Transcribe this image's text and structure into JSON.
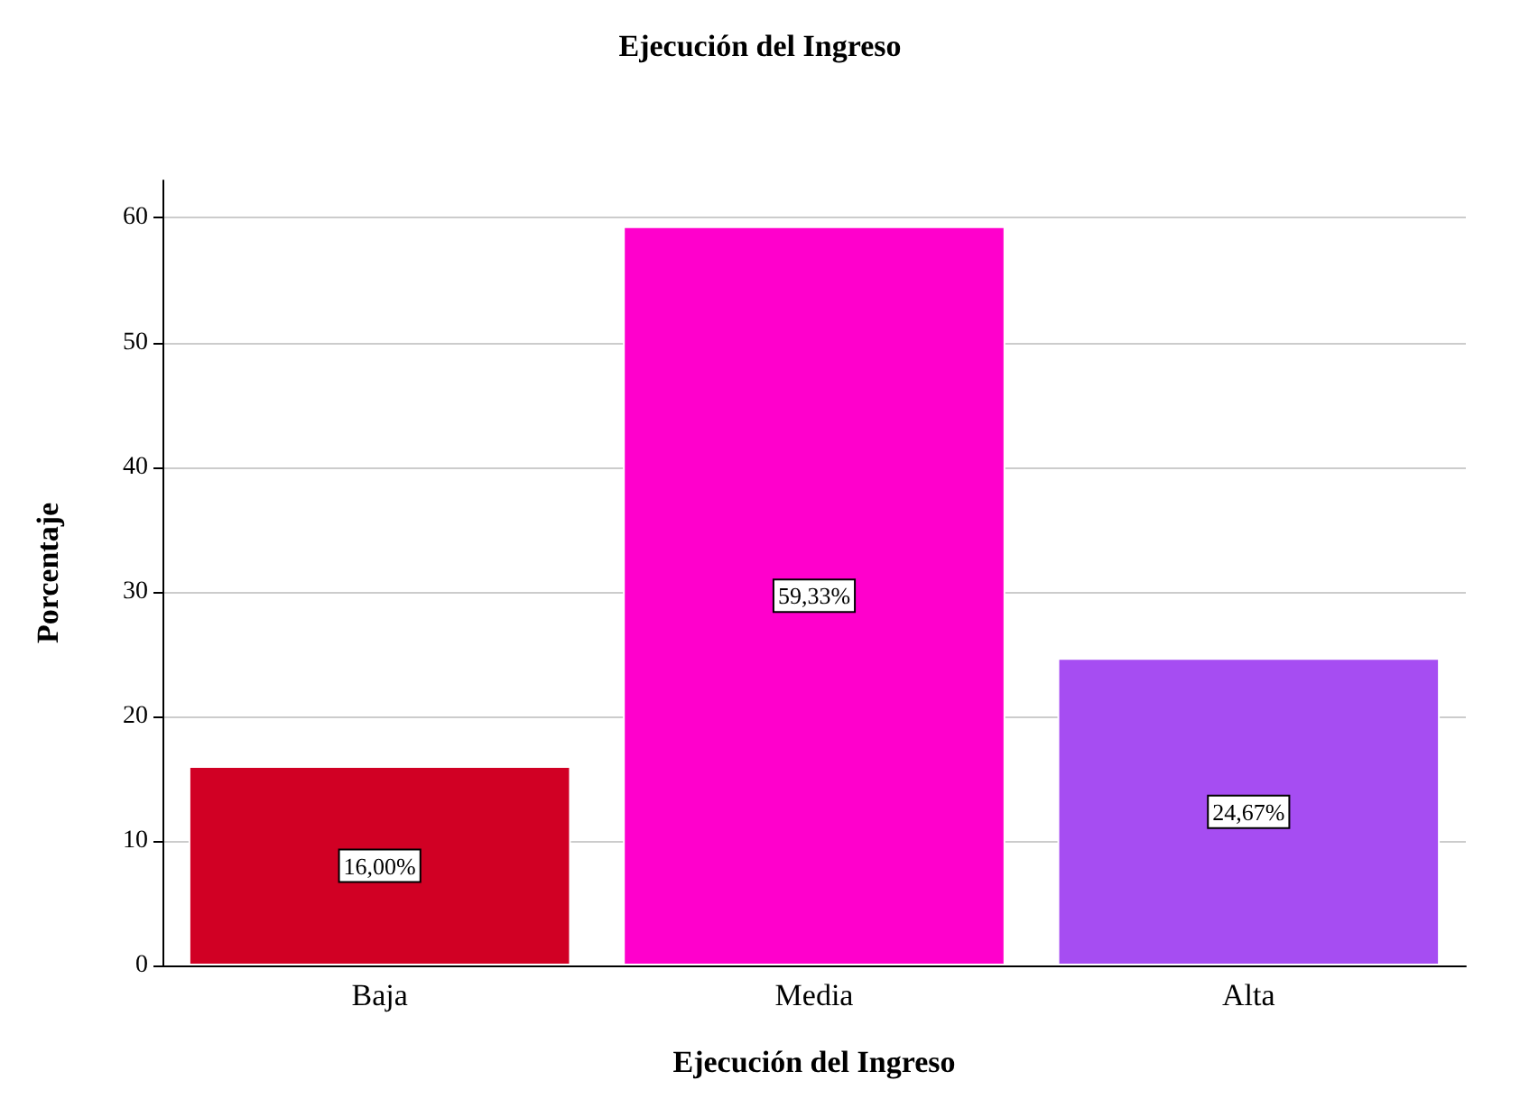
{
  "chart_data": {
    "type": "bar",
    "title": "Ejecución del Ingreso",
    "xlabel": "Ejecución del Ingreso",
    "ylabel": "Porcentaje",
    "categories": [
      "Baja",
      "Media",
      "Alta"
    ],
    "values": [
      16.0,
      59.33,
      24.67
    ],
    "value_labels": [
      "16,00%",
      "59,33%",
      "24,67%"
    ],
    "colors": [
      "#d10024",
      "#ff00cc",
      "#a64df2"
    ],
    "ylim": [
      0,
      63
    ],
    "yticks": [
      0,
      10,
      20,
      30,
      40,
      50,
      60
    ],
    "grid": "y"
  }
}
